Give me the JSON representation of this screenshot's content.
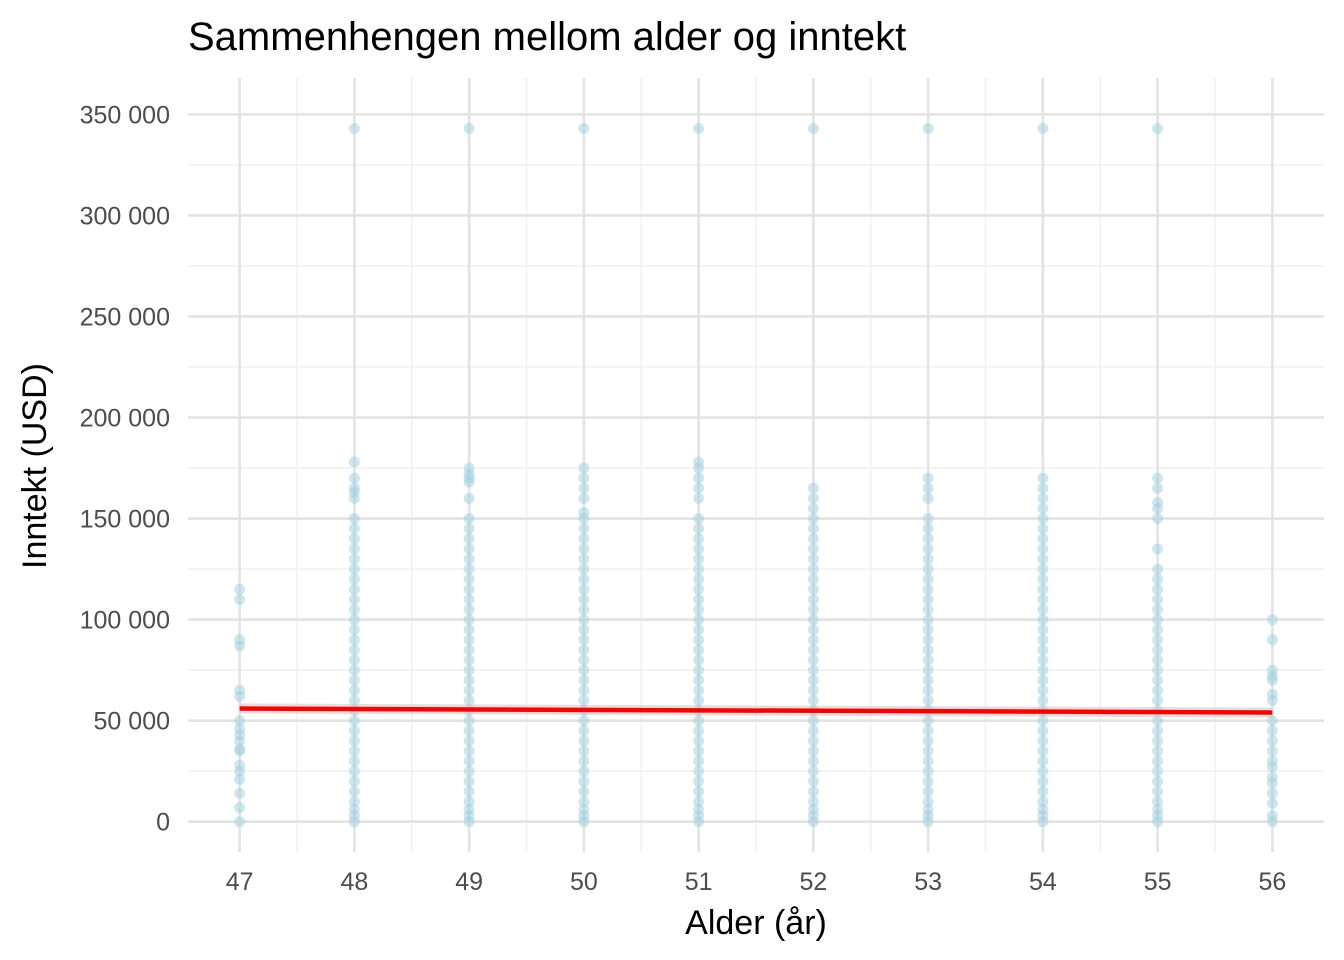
{
  "chart_data": {
    "type": "scatter",
    "title": "Sammenhengen mellom alder og inntekt",
    "xlabel": "Alder (år)",
    "ylabel": "Inntekt (USD)",
    "xlim": [
      46.55,
      56.45
    ],
    "ylim": [
      -15000,
      368000
    ],
    "x_ticks": [
      47,
      48,
      49,
      50,
      51,
      52,
      53,
      54,
      55,
      56
    ],
    "x_tick_labels": [
      "47",
      "48",
      "49",
      "50",
      "51",
      "52",
      "53",
      "54",
      "55",
      "56"
    ],
    "y_ticks": [
      0,
      50000,
      100000,
      150000,
      200000,
      250000,
      300000,
      350000
    ],
    "y_tick_labels": [
      "0",
      "50 000",
      "100 000",
      "150 000",
      "200 000",
      "250 000",
      "300 000",
      "350 000"
    ],
    "grid": true,
    "point_color": "#9ecfe0",
    "trend_color": "#ff0000",
    "band_color": "#c8c8c8",
    "series": [
      {
        "type": "scatter",
        "points": [
          {
            "age": 47,
            "incomes": [
              0,
              7000,
              14000,
              21000,
              25000,
              28000,
              35000,
              36000,
              40000,
              43000,
              46000,
              50000,
              62000,
              65000,
              87000,
              90000,
              110000,
              115000
            ]
          },
          {
            "age": 48,
            "incomes": [
              0,
              3000,
              6000,
              10000,
              15000,
              20000,
              25000,
              30000,
              35000,
              40000,
              45000,
              50000,
              55000,
              60000,
              65000,
              70000,
              75000,
              80000,
              85000,
              90000,
              95000,
              100000,
              105000,
              110000,
              115000,
              120000,
              125000,
              130000,
              135000,
              140000,
              145000,
              150000,
              160000,
              163000,
              165000,
              170000,
              178000,
              343000
            ]
          },
          {
            "age": 49,
            "incomes": [
              0,
              3000,
              6000,
              10000,
              15000,
              20000,
              25000,
              30000,
              35000,
              40000,
              45000,
              50000,
              55000,
              60000,
              65000,
              70000,
              75000,
              80000,
              85000,
              90000,
              95000,
              100000,
              105000,
              110000,
              115000,
              120000,
              125000,
              130000,
              135000,
              140000,
              145000,
              150000,
              160000,
              168000,
              170000,
              172000,
              175000,
              343000
            ]
          },
          {
            "age": 50,
            "incomes": [
              0,
              3000,
              6000,
              10000,
              15000,
              20000,
              25000,
              30000,
              35000,
              40000,
              45000,
              50000,
              55000,
              60000,
              65000,
              70000,
              75000,
              80000,
              85000,
              90000,
              95000,
              100000,
              105000,
              110000,
              115000,
              120000,
              125000,
              130000,
              135000,
              140000,
              145000,
              150000,
              153000,
              160000,
              165000,
              170000,
              175000,
              343000
            ]
          },
          {
            "age": 51,
            "incomes": [
              0,
              3000,
              6000,
              10000,
              15000,
              20000,
              25000,
              30000,
              35000,
              40000,
              45000,
              50000,
              55000,
              60000,
              65000,
              70000,
              75000,
              80000,
              85000,
              90000,
              95000,
              100000,
              105000,
              110000,
              115000,
              120000,
              125000,
              130000,
              135000,
              140000,
              145000,
              150000,
              160000,
              165000,
              170000,
              175000,
              178000,
              343000
            ]
          },
          {
            "age": 52,
            "incomes": [
              0,
              3000,
              6000,
              10000,
              15000,
              20000,
              25000,
              30000,
              35000,
              40000,
              45000,
              50000,
              55000,
              60000,
              65000,
              70000,
              75000,
              80000,
              85000,
              90000,
              95000,
              100000,
              105000,
              110000,
              115000,
              120000,
              125000,
              130000,
              135000,
              140000,
              145000,
              150000,
              155000,
              160000,
              165000,
              343000
            ]
          },
          {
            "age": 53,
            "incomes": [
              0,
              3000,
              6000,
              10000,
              15000,
              20000,
              25000,
              30000,
              35000,
              40000,
              45000,
              50000,
              55000,
              60000,
              65000,
              70000,
              75000,
              80000,
              85000,
              90000,
              95000,
              100000,
              105000,
              110000,
              115000,
              120000,
              125000,
              130000,
              135000,
              140000,
              145000,
              150000,
              160000,
              165000,
              170000,
              343000
            ]
          },
          {
            "age": 54,
            "incomes": [
              0,
              3000,
              6000,
              10000,
              15000,
              20000,
              25000,
              30000,
              35000,
              40000,
              45000,
              50000,
              55000,
              60000,
              65000,
              70000,
              75000,
              80000,
              85000,
              90000,
              95000,
              100000,
              105000,
              110000,
              115000,
              120000,
              125000,
              130000,
              135000,
              140000,
              145000,
              150000,
              155000,
              160000,
              165000,
              170000,
              343000
            ]
          },
          {
            "age": 55,
            "incomes": [
              0,
              3000,
              6000,
              10000,
              15000,
              20000,
              25000,
              30000,
              35000,
              40000,
              45000,
              50000,
              55000,
              60000,
              65000,
              70000,
              75000,
              80000,
              85000,
              90000,
              95000,
              100000,
              105000,
              110000,
              115000,
              120000,
              125000,
              135000,
              150000,
              155000,
              158000,
              165000,
              170000,
              343000
            ]
          },
          {
            "age": 56,
            "incomes": [
              0,
              3000,
              9000,
              14000,
              19000,
              22000,
              27000,
              30000,
              35000,
              40000,
              45000,
              50000,
              60000,
              63000,
              70000,
              72000,
              75000,
              90000,
              100000
            ]
          }
        ]
      },
      {
        "type": "line",
        "x": [
          47,
          56
        ],
        "y": [
          56000,
          54000
        ],
        "band_lower": [
          53500,
          51500
        ],
        "band_upper": [
          58500,
          56500
        ]
      }
    ]
  }
}
